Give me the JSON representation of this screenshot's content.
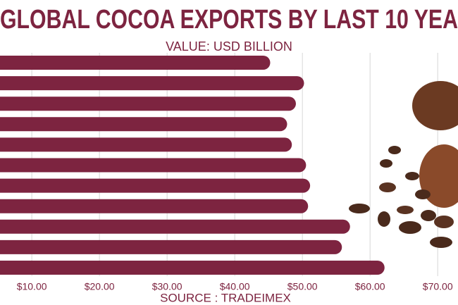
{
  "chart_data": {
    "type": "bar",
    "orientation": "horizontal",
    "title": "GLOBAL COCOA EXPORTS BY LAST 10 YEA",
    "subtitle": "VALUE: USD BILLION",
    "source": "SOURCE : TRADEIMEX",
    "categories": [
      null,
      null,
      null,
      null,
      null,
      null,
      null,
      null,
      null,
      null,
      null
    ],
    "values": [
      44.2,
      49.2,
      48.0,
      46.7,
      47.4,
      49.5,
      50.1,
      49.8,
      56.0,
      54.8,
      61.1
    ],
    "color": "#7d2440",
    "xlim": [
      5.3,
      73
    ],
    "xticks": [
      {
        "value": 10,
        "label": "$10.00"
      },
      {
        "value": 20,
        "label": "$20.00"
      },
      {
        "value": 30,
        "label": "$30.00"
      },
      {
        "value": 40,
        "label": "$40.00"
      },
      {
        "value": 50,
        "label": "$50.00"
      },
      {
        "value": 60,
        "label": "$60.00"
      },
      {
        "value": 70,
        "label": "$70.00"
      }
    ],
    "grid": true
  }
}
